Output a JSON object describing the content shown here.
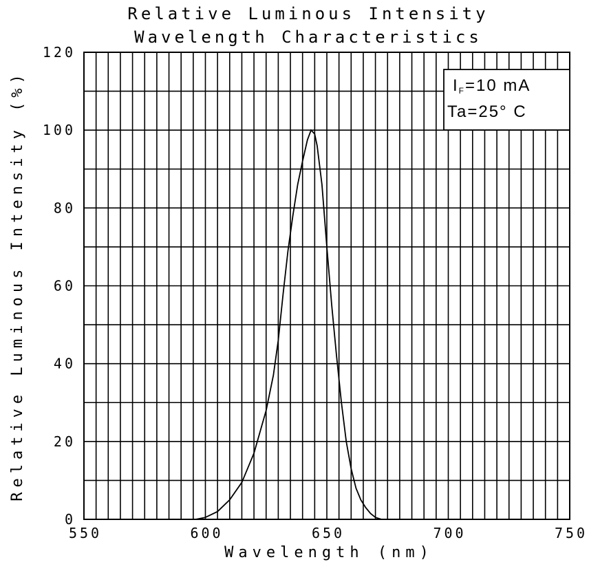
{
  "chart_data": {
    "type": "line",
    "title": [
      "Relative Luminous Intensity",
      "Wavelength Characteristics"
    ],
    "xlabel": "Wavelength   (nm)",
    "ylabel": "Relative Luminous Intensity  (%)",
    "xlim": [
      550,
      750
    ],
    "ylim": [
      0,
      120
    ],
    "x_ticks": [
      550,
      600,
      650,
      700,
      750
    ],
    "x_tick_labels": [
      "550",
      "600",
      "650",
      "700",
      "750"
    ],
    "y_ticks": [
      0,
      20,
      40,
      60,
      80,
      100,
      120
    ],
    "y_tick_labels": [
      "0",
      "20",
      "40",
      "60",
      "80",
      "100",
      "120"
    ],
    "x_grid_step": 5,
    "y_grid_step": 10,
    "grid": true,
    "legend": {
      "line1_main": "I",
      "line1_sub": "F",
      "line1_rest": "=10 mA",
      "line2": "Ta=25° C",
      "placement": "top-right"
    },
    "series": [
      {
        "x": [
          596,
          600,
          605,
          610,
          615,
          620,
          625,
          628,
          630,
          632,
          634,
          636,
          638,
          640,
          642,
          643.5,
          645,
          646,
          648,
          650,
          652,
          654,
          656,
          658,
          660,
          662,
          664,
          666,
          668,
          670,
          672.5
        ],
        "y": [
          0,
          0.5,
          2,
          5,
          9.5,
          17,
          28,
          37,
          46,
          58,
          69,
          78,
          86,
          92,
          97.5,
          100,
          99,
          96,
          86,
          70,
          55,
          42,
          30,
          20,
          13,
          8,
          5,
          3,
          1.5,
          0.5,
          0
        ]
      }
    ]
  }
}
